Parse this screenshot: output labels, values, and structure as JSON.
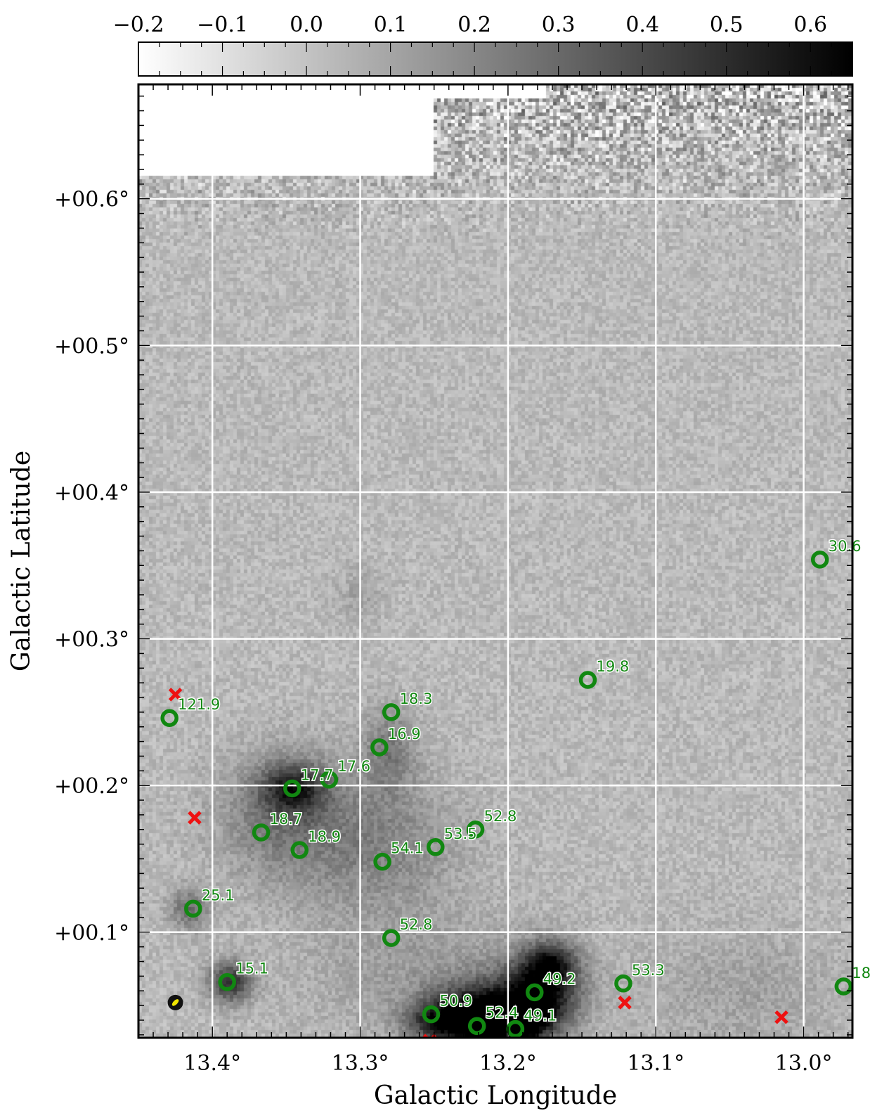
{
  "chart_data": {
    "type": "heatmap",
    "title": "",
    "xlabel": "Galactic Longitude",
    "ylabel": "Galactic Latitude",
    "xlim": [
      13.45,
      12.967
    ],
    "ylim": [
      0.028,
      0.678
    ],
    "x_ticks": [
      {
        "value": 13.4,
        "label": "13.4°"
      },
      {
        "value": 13.3,
        "label": "13.3°"
      },
      {
        "value": 13.2,
        "label": "13.2°"
      },
      {
        "value": 13.1,
        "label": "13.1°"
      },
      {
        "value": 13.0,
        "label": "13.0°"
      }
    ],
    "y_ticks": [
      {
        "value": 0.1,
        "label": "+00.1°"
      },
      {
        "value": 0.2,
        "label": "+00.2°"
      },
      {
        "value": 0.3,
        "label": "+00.3°"
      },
      {
        "value": 0.4,
        "label": "+00.4°"
      },
      {
        "value": 0.5,
        "label": "+00.5°"
      },
      {
        "value": 0.6,
        "label": "+00.6°"
      }
    ],
    "grid": true,
    "colorbar": {
      "placement": "top",
      "colormap": "gray_r",
      "min": -0.2,
      "max": 0.65,
      "ticks": [
        {
          "value": -0.2,
          "label": "−0.2"
        },
        {
          "value": -0.1,
          "label": "−0.1"
        },
        {
          "value": 0.0,
          "label": "0.0"
        },
        {
          "value": 0.1,
          "label": "0.1"
        },
        {
          "value": 0.2,
          "label": "0.2"
        },
        {
          "value": 0.3,
          "label": "0.3"
        },
        {
          "value": 0.4,
          "label": "0.4"
        },
        {
          "value": 0.5,
          "label": "0.5"
        },
        {
          "value": 0.6,
          "label": "0.6"
        }
      ]
    },
    "sources": [
      {
        "l": 12.989,
        "b": 0.354,
        "label": "30.6"
      },
      {
        "l": 13.146,
        "b": 0.272,
        "label": "19.8"
      },
      {
        "l": 13.279,
        "b": 0.25,
        "label": "18.3"
      },
      {
        "l": 13.429,
        "b": 0.246,
        "label": "121.9"
      },
      {
        "l": 13.287,
        "b": 0.226,
        "label": "16.9"
      },
      {
        "l": 13.346,
        "b": 0.198,
        "label": "17.7"
      },
      {
        "l": 13.321,
        "b": 0.204,
        "label": "17.6"
      },
      {
        "l": 13.367,
        "b": 0.168,
        "label": "18.7"
      },
      {
        "l": 13.341,
        "b": 0.156,
        "label": "18.9"
      },
      {
        "l": 13.285,
        "b": 0.148,
        "label": "54.1"
      },
      {
        "l": 13.249,
        "b": 0.158,
        "label": "53.5"
      },
      {
        "l": 13.222,
        "b": 0.17,
        "label": "52.8"
      },
      {
        "l": 13.413,
        "b": 0.116,
        "label": "25.1"
      },
      {
        "l": 13.279,
        "b": 0.096,
        "label": "52.8"
      },
      {
        "l": 13.39,
        "b": 0.066,
        "label": "15.1"
      },
      {
        "l": 13.182,
        "b": 0.059,
        "label": "49.2"
      },
      {
        "l": 13.122,
        "b": 0.065,
        "label": "53.3"
      },
      {
        "l": 12.973,
        "b": 0.063,
        "label": "18"
      },
      {
        "l": 13.252,
        "b": 0.044,
        "label": "50.9"
      },
      {
        "l": 13.221,
        "b": 0.036,
        "label": "52.4"
      },
      {
        "l": 13.195,
        "b": 0.034,
        "label": "49.1"
      }
    ],
    "cross_markers": [
      {
        "l": 13.425,
        "b": 0.262
      },
      {
        "l": 13.412,
        "b": 0.178
      },
      {
        "l": 13.121,
        "b": 0.052
      },
      {
        "l": 13.015,
        "b": 0.042
      },
      {
        "l": 13.253,
        "b": 0.026
      }
    ],
    "beam_marker": {
      "l": 13.425,
      "b": 0.052
    },
    "emission_features": [
      {
        "l": 13.218,
        "b": 0.04,
        "level": 0.75,
        "sigma_l": 0.022,
        "sigma_b": 0.016
      },
      {
        "l": 13.178,
        "b": 0.058,
        "level": 0.6,
        "sigma_l": 0.018,
        "sigma_b": 0.018
      },
      {
        "l": 13.17,
        "b": 0.08,
        "level": 0.35,
        "sigma_l": 0.012,
        "sigma_b": 0.01
      },
      {
        "l": 13.195,
        "b": 0.038,
        "level": 0.45,
        "sigma_l": 0.014,
        "sigma_b": 0.01
      },
      {
        "l": 13.25,
        "b": 0.04,
        "level": 0.3,
        "sigma_l": 0.015,
        "sigma_b": 0.01
      },
      {
        "l": 13.388,
        "b": 0.066,
        "level": 0.45,
        "sigma_l": 0.01,
        "sigma_b": 0.01
      },
      {
        "l": 13.345,
        "b": 0.198,
        "level": 0.4,
        "sigma_l": 0.015,
        "sigma_b": 0.012
      },
      {
        "l": 13.355,
        "b": 0.18,
        "level": 0.2,
        "sigma_l": 0.03,
        "sigma_b": 0.03
      },
      {
        "l": 13.29,
        "b": 0.16,
        "level": 0.18,
        "sigma_l": 0.04,
        "sigma_b": 0.035
      },
      {
        "l": 13.28,
        "b": 0.225,
        "level": 0.2,
        "sigma_l": 0.012,
        "sigma_b": 0.02
      },
      {
        "l": 13.415,
        "b": 0.116,
        "level": 0.25,
        "sigma_l": 0.01,
        "sigma_b": 0.01
      },
      {
        "l": 13.25,
        "b": 0.07,
        "level": 0.1,
        "sigma_l": 0.06,
        "sigma_b": 0.03
      },
      {
        "l": 13.04,
        "b": 0.06,
        "level": 0.08,
        "sigma_l": 0.05,
        "sigma_b": 0.03
      },
      {
        "l": 13.3,
        "b": 0.33,
        "level": 0.08,
        "sigma_l": 0.01,
        "sigma_b": 0.015
      }
    ]
  }
}
